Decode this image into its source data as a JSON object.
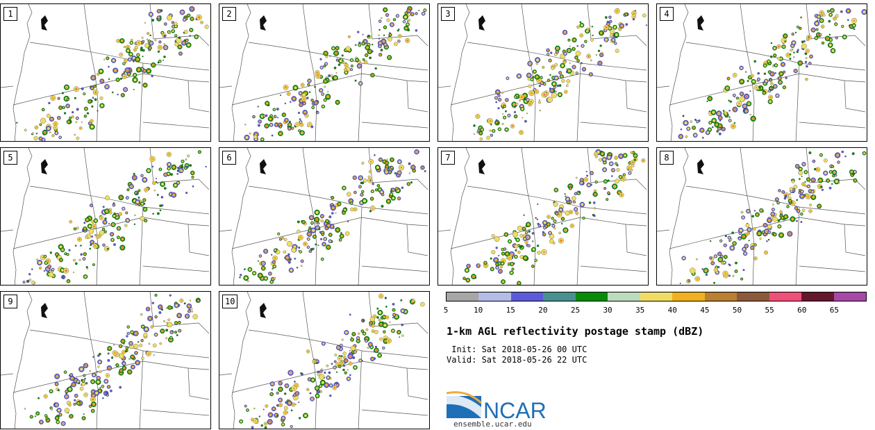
{
  "panels": [
    {
      "label": "1"
    },
    {
      "label": "2"
    },
    {
      "label": "3"
    },
    {
      "label": "4"
    },
    {
      "label": "5"
    },
    {
      "label": "6"
    },
    {
      "label": "7"
    },
    {
      "label": "8"
    },
    {
      "label": "9"
    },
    {
      "label": "10"
    }
  ],
  "colorbar": {
    "ticks": [
      "5",
      "10",
      "15",
      "20",
      "25",
      "30",
      "35",
      "40",
      "45",
      "50",
      "55",
      "60",
      "65"
    ],
    "colors": [
      "#a6a6a6",
      "#b4bce8",
      "#5b5bd8",
      "#4a9090",
      "#0a8a0a",
      "#bddcbd",
      "#f0dc64",
      "#f0b020",
      "#b88030",
      "#8a5a3a",
      "#ee5078",
      "#64182e",
      "#a648a6"
    ]
  },
  "title": "1-km AGL reflectivity postage stamp (dBZ)",
  "init": " Init: Sat 2018-05-26 00 UTC",
  "valid": "Valid: Sat 2018-05-26 22 UTC",
  "logo": {
    "text": "NCAR",
    "url": "ensemble.ucar.edu"
  }
}
